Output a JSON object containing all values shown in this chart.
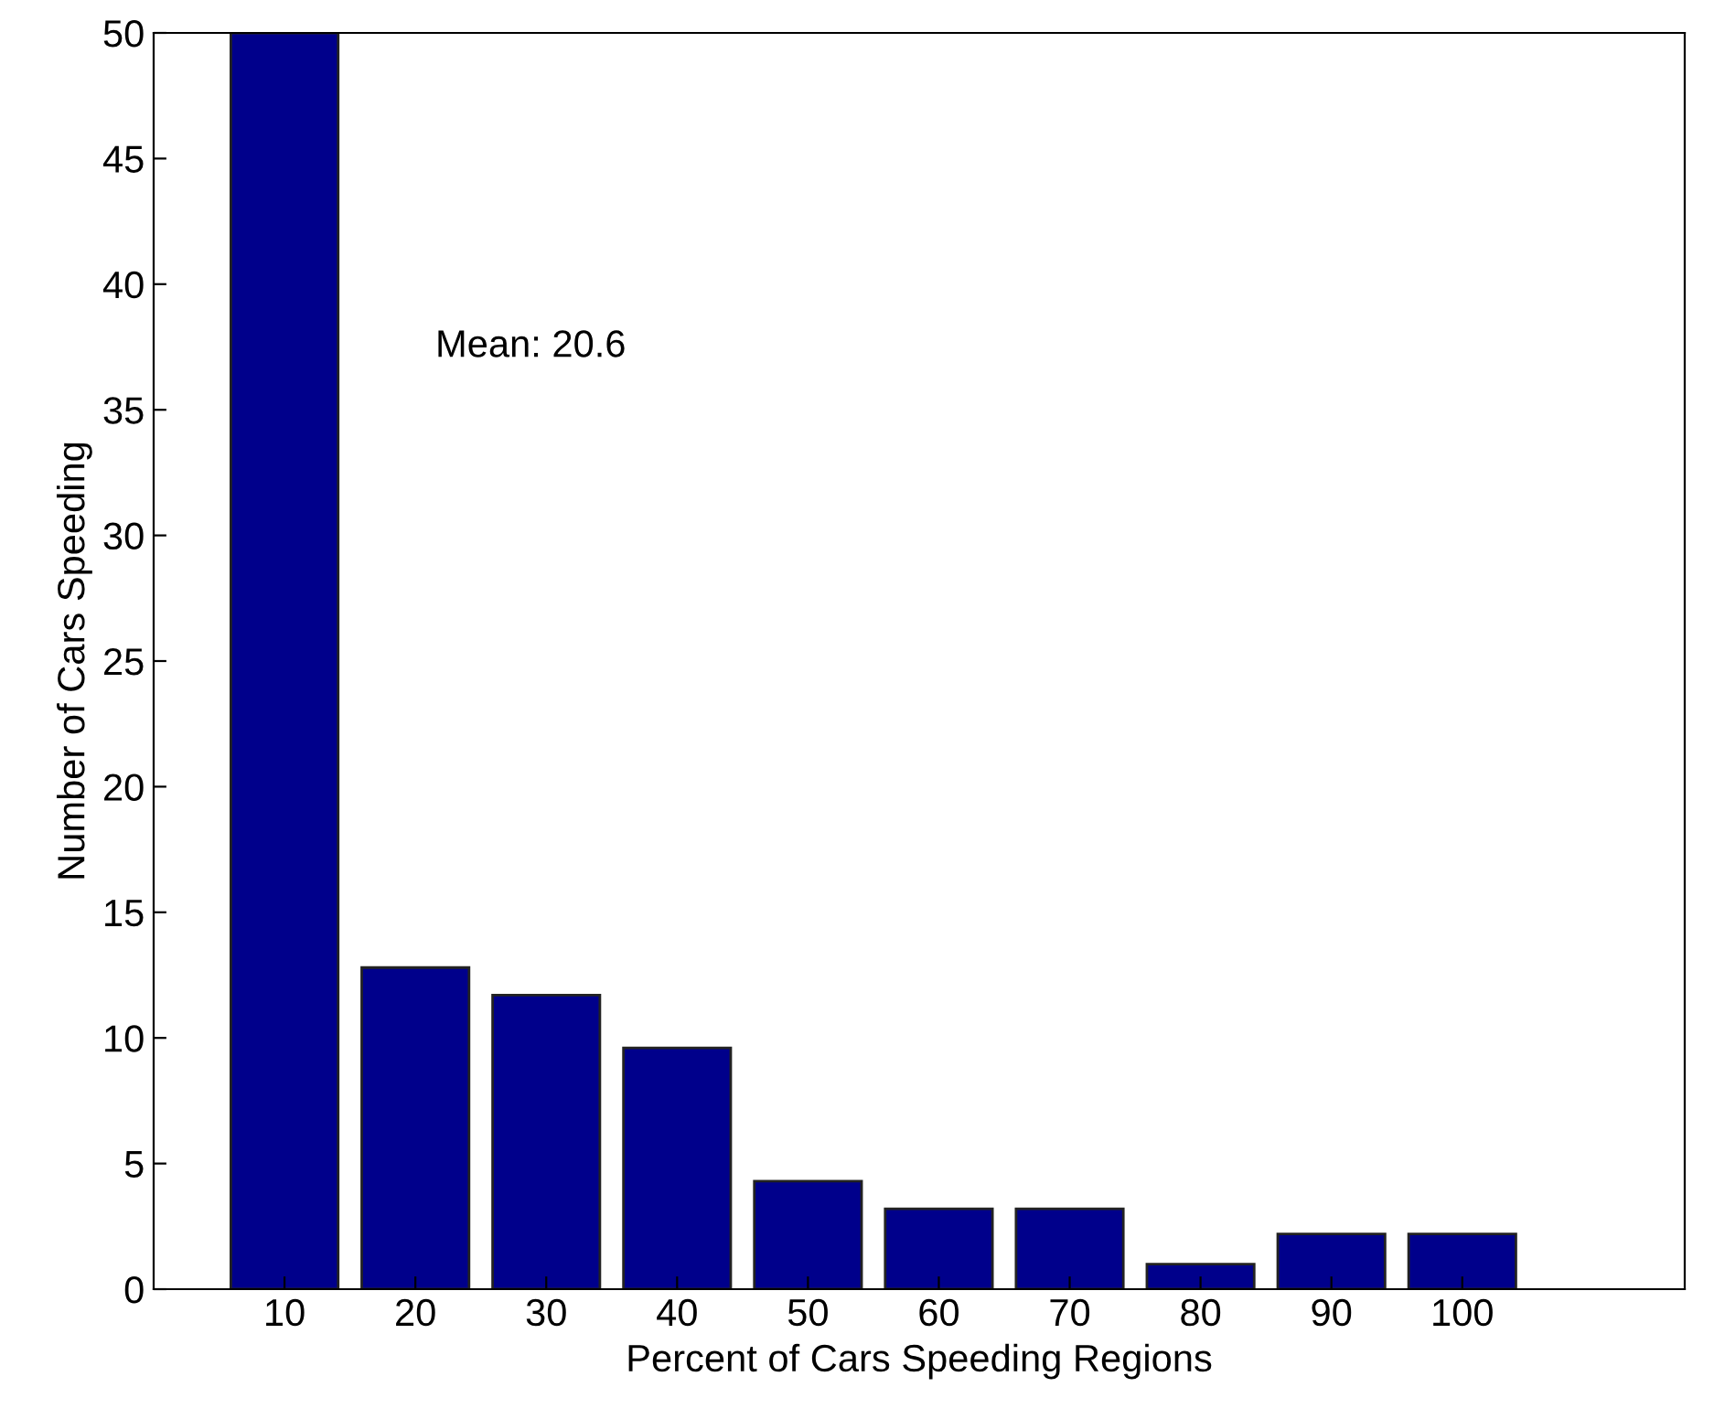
{
  "chart_data": {
    "type": "bar",
    "xlabel": "Percent of Cars Speeding Regions",
    "ylabel": "Number of Cars Speeding",
    "x": [
      10,
      20,
      30,
      40,
      50,
      60,
      70,
      80,
      90,
      100
    ],
    "values": [
      50,
      12.8,
      11.7,
      9.6,
      4.3,
      3.2,
      3.2,
      1,
      2.2,
      2.2
    ],
    "color": "#00008b",
    "xlim": [
      0,
      117
    ],
    "xticks": [
      10,
      20,
      30,
      40,
      50,
      60,
      70,
      80,
      90,
      100
    ],
    "ylim": [
      0,
      50
    ],
    "yticks": [
      0,
      5,
      10,
      15,
      20,
      25,
      30,
      35,
      40,
      45,
      50
    ],
    "annotations": [
      "Mean: 20.6"
    ],
    "grid": false,
    "legend": false
  }
}
